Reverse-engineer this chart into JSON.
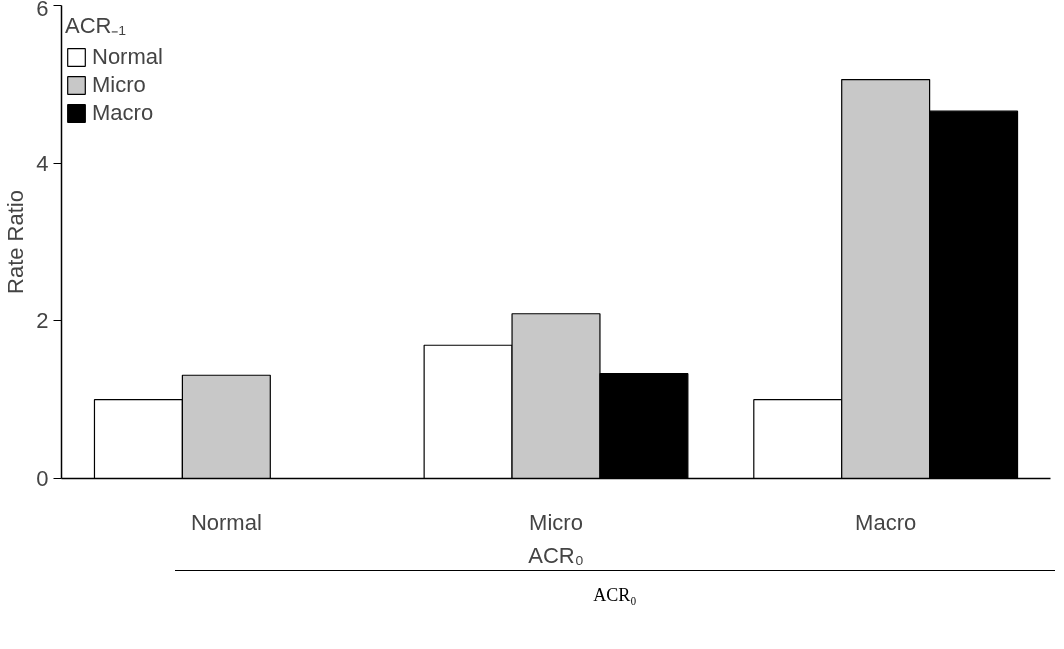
{
  "chart_data": {
    "type": "bar",
    "categories": [
      "Normal",
      "Micro",
      "Macro"
    ],
    "series": [
      {
        "name": "Normal",
        "color": "#ffffff",
        "values": [
          1.0,
          1.69,
          1.0
        ]
      },
      {
        "name": "Micro",
        "color": "#c8c8c8",
        "values": [
          1.31,
          2.09,
          5.06
        ]
      },
      {
        "name": "Macro",
        "color": "#000000",
        "values": [
          null,
          1.33,
          4.66
        ]
      }
    ],
    "ylabel": "Rate Ratio",
    "xlabel": "ACR₀",
    "legend_title": "ACR₋₁",
    "legend": "top left",
    "ylim": [
      0,
      6
    ],
    "yticks": [
      0,
      2,
      4,
      6
    ],
    "grid": false,
    "annotations": [
      "ACR₀"
    ]
  }
}
